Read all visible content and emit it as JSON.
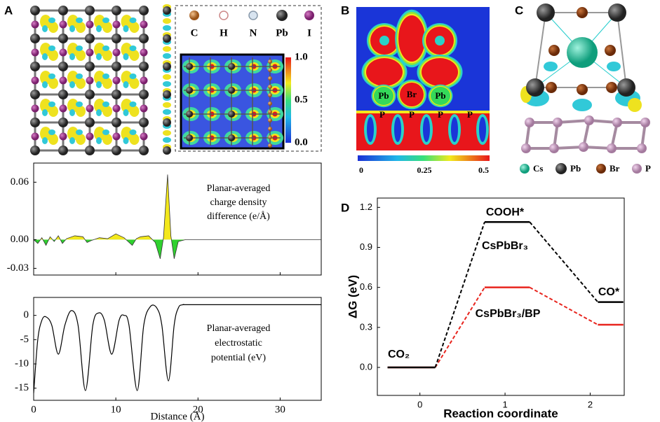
{
  "panels": {
    "A": {
      "label": "A",
      "legend": [
        "C",
        "H",
        "N",
        "Pb",
        "I"
      ],
      "colorbar_ticks": [
        "1.0",
        "0.5",
        "0.0"
      ]
    },
    "B": {
      "label": "B",
      "atom_labels": [
        "Pb",
        "Br",
        "Pb",
        "P",
        "P",
        "P",
        "P"
      ],
      "colorbar_ticks": [
        "0",
        "0.25",
        "0.5"
      ]
    },
    "C": {
      "label": "C",
      "legend": [
        "Cs",
        "Pb",
        "Br",
        "P"
      ]
    },
    "D": {
      "label": "D"
    }
  },
  "chart_data": [
    {
      "type": "area",
      "annotation": [
        "Planar-averaged",
        "charge density",
        "difference (e/Å)"
      ],
      "x": [
        0,
        0.5,
        1,
        1.5,
        2,
        2.5,
        3,
        3.5,
        4,
        5,
        6,
        6.5,
        7,
        8,
        9,
        10,
        11,
        12,
        12.5,
        13,
        14,
        14.8,
        15.4,
        15.8,
        16.3,
        16.7,
        17.1,
        17.6,
        18.5,
        35
      ],
      "values": [
        0,
        -0.004,
        0.002,
        -0.006,
        0.003,
        -0.002,
        0.004,
        -0.004,
        0.001,
        0.004,
        0.003,
        -0.003,
        -0.001,
        0.002,
        0.001,
        0.006,
        0.002,
        -0.006,
        0.001,
        0.003,
        0.004,
        -0.003,
        -0.02,
        0.002,
        0.068,
        0.004,
        -0.02,
        -0.002,
        0,
        0
      ],
      "color_positive": "#f3e81c",
      "color_negative": "#2fd12f",
      "xlim": [
        0,
        35
      ],
      "ylim": [
        -0.037,
        0.08
      ],
      "xticks": [
        0,
        10,
        20,
        30
      ],
      "yticks": [
        {
          "value": 0.06,
          "label": "0.06"
        },
        {
          "value": 0,
          "label": "0.00"
        },
        {
          "value": -0.03,
          "label": "-0.03"
        }
      ]
    },
    {
      "type": "line",
      "annotation": [
        "Planar-averaged",
        "electrostatic",
        "potential (eV)"
      ],
      "xlabel": "Distance (Å)",
      "x": [
        0,
        0.5,
        1,
        1.5,
        2.2,
        3,
        3.8,
        4.6,
        5.4,
        6.3,
        7.2,
        7.9,
        8.6,
        9.5,
        10.4,
        11,
        11.6,
        12.6,
        13.4,
        14.2,
        15,
        15.6,
        16.4,
        17.1,
        17.6,
        18.2,
        20,
        35
      ],
      "values": [
        -16,
        -5,
        -1,
        -0.3,
        -2,
        -8,
        -2,
        1,
        -2,
        -15.5,
        -2,
        0.5,
        -1,
        -8,
        -1,
        0,
        -2,
        -15.5,
        -2,
        1.8,
        1.5,
        -2,
        -13.5,
        -2,
        1.5,
        2.2,
        2.2,
        2.2
      ],
      "color": "#000000",
      "xlim": [
        0,
        35
      ],
      "ylim": [
        -17.5,
        3.7
      ],
      "xticks": [
        0,
        10,
        20,
        30
      ],
      "yticks": [
        0,
        -5,
        -10,
        -15
      ]
    },
    {
      "type": "energy_levels",
      "xlabel": "Reaction coordinate",
      "ylabel": "ΔG (eV)",
      "annotations": [
        "CO₂",
        "COOH*",
        "CO*"
      ],
      "x": [
        0,
        1,
        2
      ],
      "series": [
        {
          "name": "CsPbBr₃",
          "color": "#000000",
          "values": [
            0,
            1.09,
            0.49
          ]
        },
        {
          "name": "CsPbBr₃/BP",
          "color": "#e8251e",
          "values": [
            0,
            0.6,
            0.32
          ]
        }
      ],
      "xlim": [
        -0.5,
        2.4
      ],
      "ylim": [
        -0.21,
        1.27
      ],
      "xticks": [
        0,
        1,
        2
      ],
      "yticks": [
        {
          "value": 0,
          "label": "0.0"
        },
        {
          "value": 0.3,
          "label": "0.3"
        },
        {
          "value": 0.6,
          "label": "0.6"
        },
        {
          "value": 0.9,
          "label": "0.9"
        },
        {
          "value": 1.2,
          "label": "1.2"
        }
      ]
    }
  ]
}
